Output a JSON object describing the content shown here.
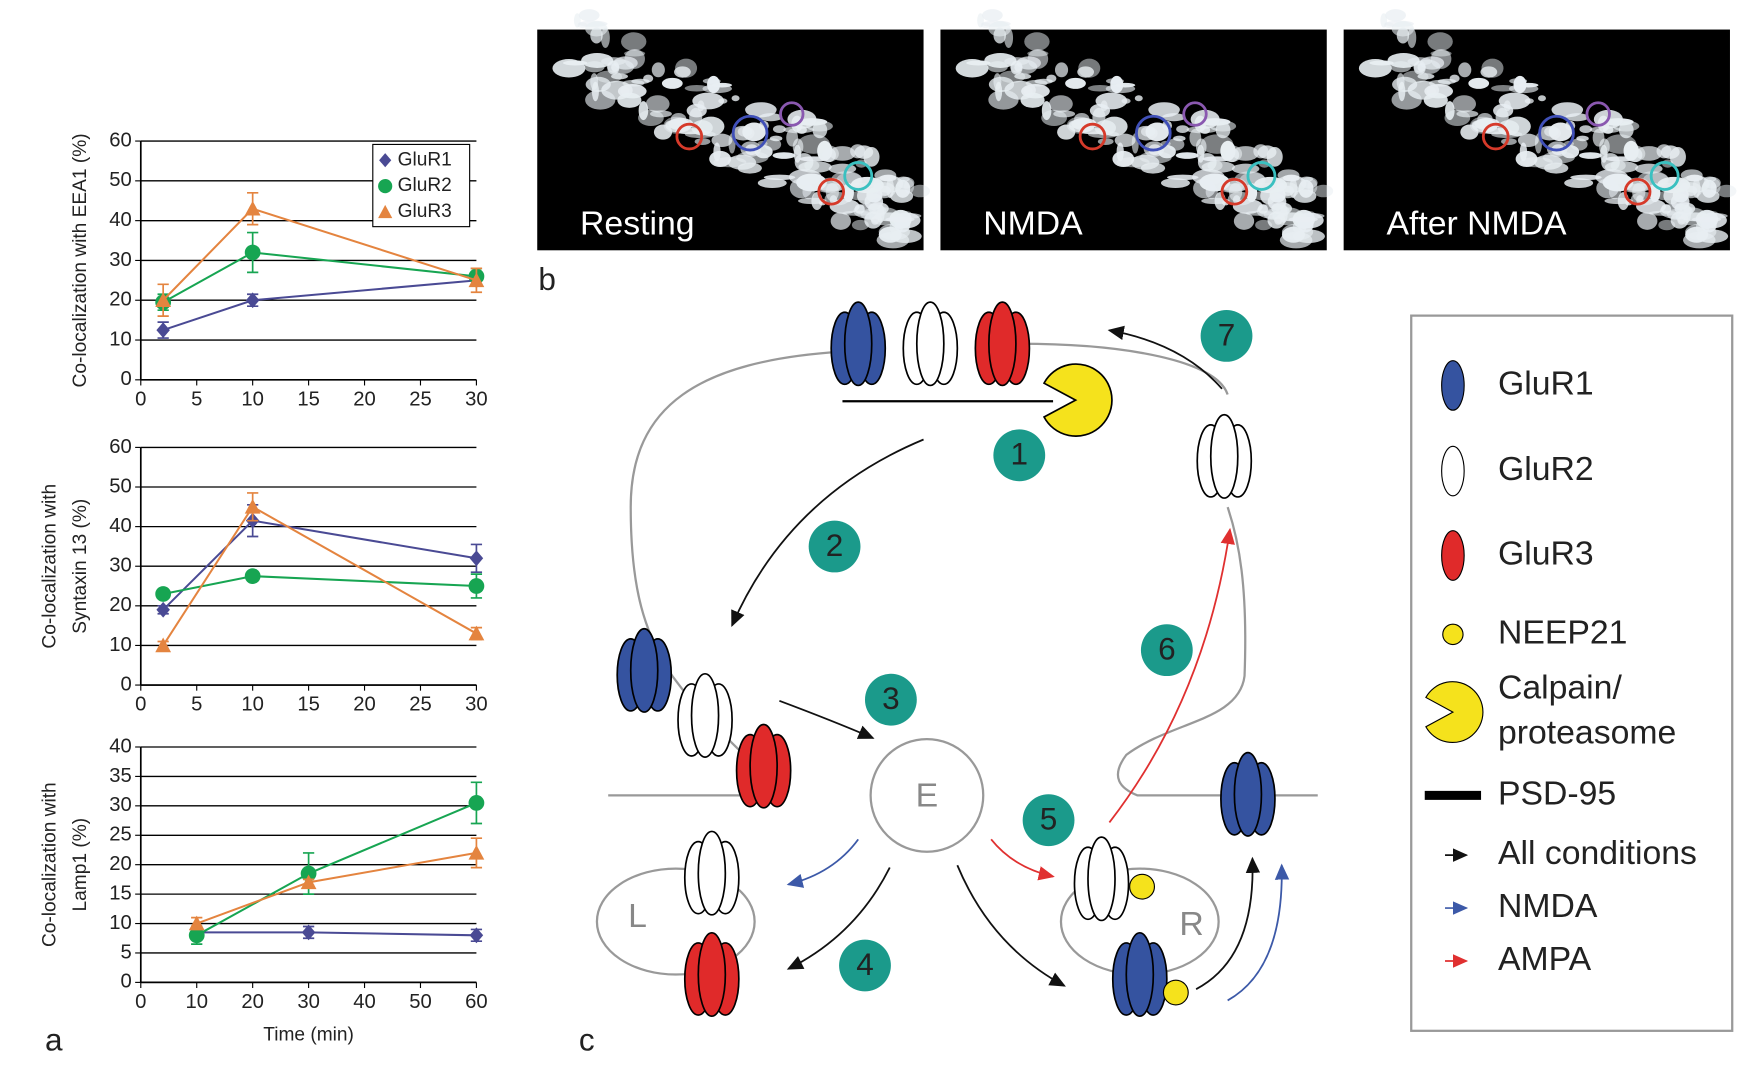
{
  "chart_data": [
    {
      "type": "line",
      "ylabel": "Co-localization with EEA1 (%)",
      "x": [
        2,
        10,
        30
      ],
      "xlim": [
        0,
        30
      ],
      "xticks": [
        0,
        5,
        10,
        15,
        20,
        25,
        30
      ],
      "ylim": [
        0,
        60
      ],
      "yticks": [
        0,
        10,
        20,
        30,
        40,
        50,
        60
      ],
      "grid": true,
      "legend": "upper right",
      "series": [
        {
          "name": "GluR1",
          "color": "#4a4a94",
          "marker": "diamond",
          "values": [
            12.5,
            20,
            25
          ],
          "errors": [
            2,
            1.5,
            1
          ]
        },
        {
          "name": "GluR2",
          "color": "#17a552",
          "marker": "circle",
          "values": [
            19.5,
            32,
            26
          ],
          "errors": [
            2,
            5,
            2
          ]
        },
        {
          "name": "GluR3",
          "color": "#e4843f",
          "marker": "triangle",
          "values": [
            20,
            43,
            25
          ],
          "errors": [
            4,
            4,
            3
          ]
        }
      ]
    },
    {
      "type": "line",
      "ylabel": [
        "Co-localization with",
        "Syntaxin 13 (%)"
      ],
      "x": [
        2,
        10,
        30
      ],
      "xlim": [
        0,
        30
      ],
      "xticks": [
        0,
        5,
        10,
        15,
        20,
        25,
        30
      ],
      "ylim": [
        0,
        60
      ],
      "yticks": [
        0,
        10,
        20,
        30,
        40,
        50,
        60
      ],
      "grid": true,
      "series": [
        {
          "color": "#4a4a94",
          "marker": "diamond",
          "values": [
            19,
            41.5,
            32
          ],
          "errors": [
            1,
            4,
            3.5
          ]
        },
        {
          "color": "#17a552",
          "marker": "circle",
          "values": [
            23,
            27.5,
            25
          ],
          "errors": [
            1,
            1,
            3
          ]
        },
        {
          "color": "#e4843f",
          "marker": "triangle",
          "values": [
            10,
            45,
            13
          ],
          "errors": [
            1,
            3.5,
            1.5
          ]
        }
      ]
    },
    {
      "type": "line",
      "ylabel": [
        "Co-localization with",
        "Lamp1 (%)"
      ],
      "xlabel": "Time (min)",
      "x": [
        10,
        30,
        60
      ],
      "xlim": [
        0,
        60
      ],
      "xticks": [
        0,
        10,
        20,
        30,
        40,
        50,
        60
      ],
      "ylim": [
        0,
        40
      ],
      "yticks": [
        0,
        5,
        10,
        15,
        20,
        25,
        30,
        35,
        40
      ],
      "grid": true,
      "series": [
        {
          "color": "#4a4a94",
          "marker": "diamond",
          "values": [
            8.5,
            8.5,
            8
          ],
          "errors": [
            1,
            1,
            1
          ]
        },
        {
          "color": "#17a552",
          "marker": "circle",
          "values": [
            8,
            18.5,
            30.5
          ],
          "errors": [
            1.5,
            3.5,
            3.5
          ]
        },
        {
          "color": "#e4843f",
          "marker": "triangle",
          "values": [
            10,
            17,
            22
          ],
          "errors": [
            1,
            0.5,
            2.5
          ]
        }
      ]
    }
  ],
  "panel_labels": [
    "a",
    "b",
    "c"
  ],
  "images": {
    "labels": [
      "Resting",
      "NMDA",
      "After NMDA"
    ]
  },
  "diagram": {
    "steps": [
      "1",
      "2",
      "3",
      "4",
      "5",
      "6",
      "7"
    ],
    "compartments": [
      "E",
      "L",
      "R"
    ],
    "legend": [
      "GluR1",
      "GluR2",
      "GluR3",
      "NEEP21",
      [
        "Calpain/",
        "proteasome"
      ],
      "PSD-95",
      "All conditions",
      "NMDA",
      "AMPA"
    ]
  }
}
